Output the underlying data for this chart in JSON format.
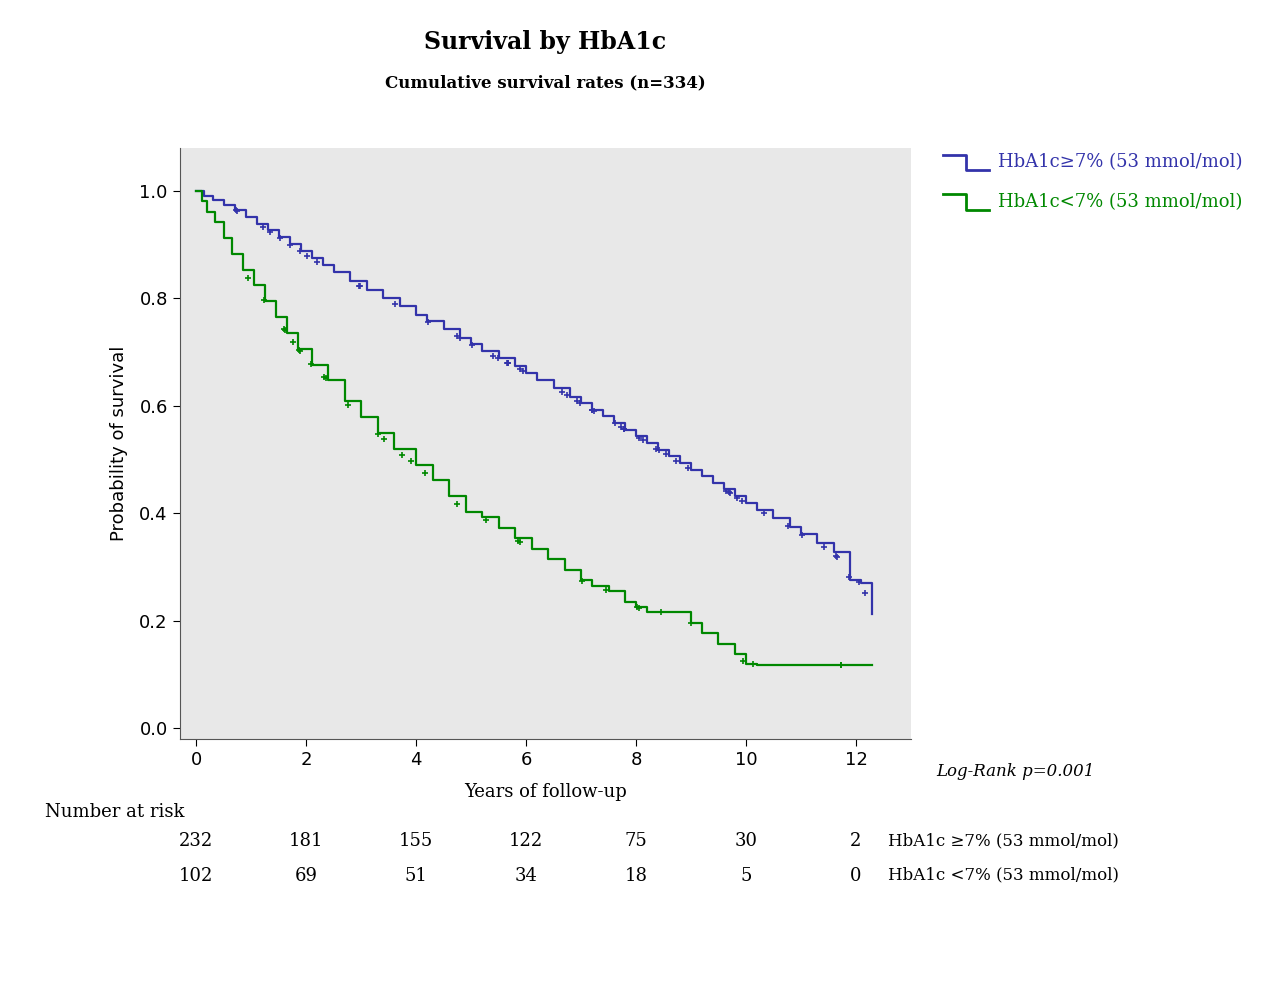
{
  "title": "Survival by HbA1c",
  "subtitle": "Cumulative survival rates (n=334)",
  "xlabel": "Years of follow-up",
  "ylabel": "Probability of survival",
  "logrank": "Log-Rank p=0.001",
  "xlim": [
    -0.3,
    13.0
  ],
  "ylim": [
    -0.02,
    1.08
  ],
  "xticks": [
    0,
    2,
    4,
    6,
    8,
    10,
    12
  ],
  "yticks": [
    0.0,
    0.2,
    0.4,
    0.6,
    0.8,
    1.0
  ],
  "bg_color": "#e8e8e8",
  "blue_color": "#3333aa",
  "green_color": "#008800",
  "legend1": "HbA1c≥7% (53 mmol/mol)",
  "legend2": "HbA1c<7% (53 mmol/mol)",
  "risk_label": "Number at risk",
  "risk_times": [
    0,
    2,
    4,
    6,
    8,
    10,
    12
  ],
  "risk_blue": [
    232,
    181,
    155,
    122,
    75,
    30,
    2
  ],
  "risk_green": [
    102,
    69,
    51,
    34,
    18,
    5,
    0
  ],
  "risk_label1": "HbA1c ≥7% (53 mmol/mol)",
  "risk_label2": "HbA1c <7% (53 mmol/mol)",
  "blue_t": [
    0.0,
    0.15,
    0.3,
    0.5,
    0.7,
    0.9,
    1.1,
    1.3,
    1.5,
    1.7,
    1.9,
    2.1,
    2.3,
    2.5,
    2.8,
    3.1,
    3.4,
    3.7,
    4.0,
    4.2,
    4.5,
    4.8,
    5.0,
    5.2,
    5.5,
    5.8,
    6.0,
    6.2,
    6.5,
    6.8,
    7.0,
    7.2,
    7.4,
    7.6,
    7.8,
    8.0,
    8.2,
    8.4,
    8.6,
    8.8,
    9.0,
    9.2,
    9.4,
    9.6,
    9.8,
    10.0,
    10.2,
    10.5,
    10.8,
    11.0,
    11.3,
    11.6,
    11.9,
    12.1,
    12.3
  ],
  "blue_s": [
    1.0,
    0.991,
    0.983,
    0.974,
    0.965,
    0.952,
    0.939,
    0.926,
    0.913,
    0.9,
    0.887,
    0.874,
    0.861,
    0.848,
    0.832,
    0.816,
    0.8,
    0.785,
    0.769,
    0.757,
    0.742,
    0.726,
    0.714,
    0.702,
    0.688,
    0.673,
    0.66,
    0.648,
    0.633,
    0.617,
    0.604,
    0.592,
    0.58,
    0.568,
    0.555,
    0.543,
    0.531,
    0.518,
    0.506,
    0.493,
    0.481,
    0.469,
    0.456,
    0.444,
    0.431,
    0.419,
    0.406,
    0.39,
    0.374,
    0.361,
    0.344,
    0.327,
    0.276,
    0.27,
    0.213
  ],
  "green_t": [
    0.0,
    0.1,
    0.2,
    0.35,
    0.5,
    0.65,
    0.85,
    1.05,
    1.25,
    1.45,
    1.65,
    1.85,
    2.1,
    2.4,
    2.7,
    3.0,
    3.3,
    3.6,
    4.0,
    4.3,
    4.6,
    4.9,
    5.2,
    5.5,
    5.8,
    6.1,
    6.4,
    6.7,
    7.0,
    7.2,
    7.5,
    7.8,
    8.0,
    8.2,
    8.5,
    8.8,
    9.0,
    9.2,
    9.5,
    9.8,
    10.0,
    10.2,
    10.5,
    10.8,
    11.0,
    11.5,
    12.0,
    12.3
  ],
  "green_s": [
    1.0,
    0.98,
    0.961,
    0.941,
    0.912,
    0.882,
    0.853,
    0.824,
    0.794,
    0.765,
    0.735,
    0.706,
    0.676,
    0.647,
    0.608,
    0.578,
    0.549,
    0.52,
    0.49,
    0.461,
    0.431,
    0.402,
    0.392,
    0.373,
    0.353,
    0.333,
    0.314,
    0.294,
    0.275,
    0.265,
    0.255,
    0.235,
    0.225,
    0.216,
    0.216,
    0.216,
    0.196,
    0.176,
    0.157,
    0.137,
    0.12,
    0.118,
    0.118,
    0.118,
    0.118,
    0.118,
    0.118,
    0.118
  ]
}
